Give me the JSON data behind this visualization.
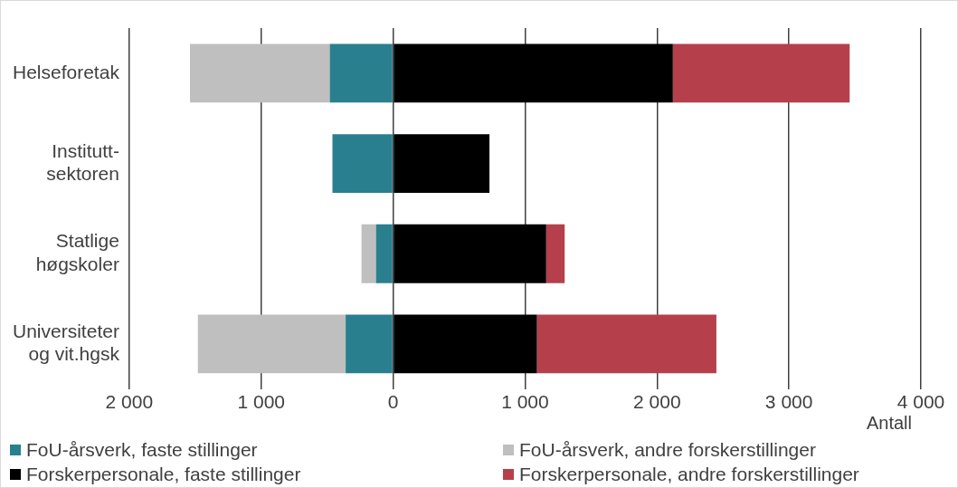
{
  "chart_data": {
    "type": "bar",
    "orientation": "horizontal",
    "stacked": true,
    "categories": [
      "Helseforetak",
      "Institutt-\nsektoren",
      "Statlige\nhøgskoler",
      "Universiteter\nog vit.hgsk"
    ],
    "series": [
      {
        "name": "FoU-årsverk, faste stillinger",
        "color": "#2a7f8e",
        "values": [
          -480,
          -460,
          -130,
          -360
        ]
      },
      {
        "name": "FoU-årsverk, andre forskerstillinger",
        "color": "#bfbfbf",
        "values": [
          -1060,
          null,
          -110,
          -1120
        ]
      },
      {
        "name": "Forskerpersonale, faste stillinger",
        "color": "#000000",
        "values": [
          2120,
          730,
          1160,
          1090
        ]
      },
      {
        "name": "Forskerpersonale, andre forskerstillinger",
        "color": "#b5404c",
        "values": [
          1340,
          null,
          140,
          1360
        ]
      }
    ],
    "xlim": [
      -2000,
      4000
    ],
    "xticks": [
      {
        "value": -2000,
        "label": "2 000"
      },
      {
        "value": -1000,
        "label": "1 000"
      },
      0,
      {
        "value": 1000,
        "label": "1 000"
      },
      {
        "value": 2000,
        "label": "2 000"
      },
      {
        "value": 3000,
        "label": "3 000"
      },
      {
        "value": 4000,
        "label": "4 000"
      }
    ],
    "xlabel": "Antall",
    "grid": "x",
    "legend": "bottom"
  }
}
